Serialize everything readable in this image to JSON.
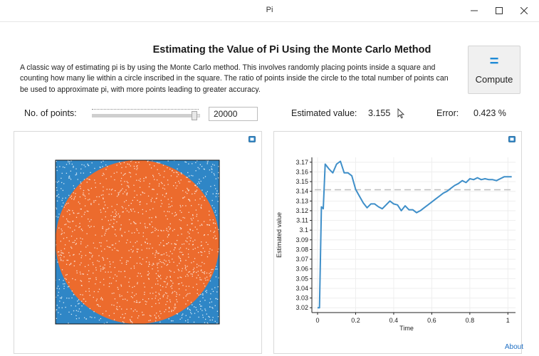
{
  "window": {
    "title": "Pi",
    "controls": [
      "minimize-icon",
      "maximize-icon",
      "close-icon"
    ]
  },
  "heading": "Estimating the Value of Pi Using the Monte Carlo Method",
  "description": "A classic way of estimating pi is by using the Monte Carlo method. This involves randomly placing points inside a square and counting how many lie within a circle inscribed in the square. The ratio of points inside the circle to the total number of points can be used to approximate pi, with more points leading to greater accuracy.",
  "compute_button": {
    "icon": "equals-icon",
    "label": "Compute"
  },
  "controls": {
    "points_label": "No. of points:",
    "points_slider_level": 0.96,
    "points_value": "20000",
    "estimated_label": "Estimated value:",
    "estimated_value": "3.155",
    "error_label": "Error:",
    "error_value": "0.423 %"
  },
  "colors": {
    "inside_points": "#ec6b2d",
    "outside_points": "#2f86c6",
    "line": "#3f8fc9",
    "reference_line": "#bdbdbd",
    "accent": "#1e8ad6"
  },
  "scatter_panel": {
    "icon": "plot-export-icon"
  },
  "chart_data": {
    "type": "line",
    "title": "",
    "xlabel": "Time",
    "ylabel": "Estimated value",
    "xlim": [
      -0.03,
      1.04
    ],
    "ylim": [
      3.015,
      3.175
    ],
    "xticks": [
      "0",
      "0.2",
      "0.4",
      "0.6",
      "0.8",
      "1"
    ],
    "xtick_values": [
      0,
      0.2,
      0.4,
      0.6,
      0.8,
      1
    ],
    "yticks": [
      "3.02",
      "3.03",
      "3.04",
      "3.05",
      "3.06",
      "3.07",
      "3.08",
      "3.09",
      "3.1",
      "3.11",
      "3.12",
      "3.13",
      "3.14",
      "3.15",
      "3.16",
      "3.17"
    ],
    "ytick_values": [
      3.02,
      3.03,
      3.04,
      3.05,
      3.06,
      3.07,
      3.08,
      3.09,
      3.1,
      3.11,
      3.12,
      3.13,
      3.14,
      3.15,
      3.16,
      3.17
    ],
    "grid": true,
    "reference_value": 3.1416,
    "series": [
      {
        "x": [
          0,
          0.01,
          0.02,
          0.03,
          0.04,
          0.06,
          0.08,
          0.1,
          0.12,
          0.14,
          0.16,
          0.18,
          0.2,
          0.22,
          0.24,
          0.26,
          0.28,
          0.3,
          0.32,
          0.34,
          0.36,
          0.38,
          0.4,
          0.42,
          0.44,
          0.46,
          0.48,
          0.5,
          0.52,
          0.54,
          0.56,
          0.58,
          0.6,
          0.62,
          0.64,
          0.66,
          0.68,
          0.7,
          0.72,
          0.74,
          0.76,
          0.78,
          0.8,
          0.82,
          0.84,
          0.86,
          0.88,
          0.9,
          0.92,
          0.94,
          0.96,
          0.98,
          1.0,
          1.02
        ],
        "y": [
          3.02,
          3.02,
          3.124,
          3.122,
          3.168,
          3.163,
          3.159,
          3.168,
          3.171,
          3.159,
          3.159,
          3.156,
          3.142,
          3.135,
          3.128,
          3.123,
          3.127,
          3.127,
          3.124,
          3.122,
          3.126,
          3.13,
          3.127,
          3.126,
          3.12,
          3.125,
          3.121,
          3.121,
          3.118,
          3.12,
          3.123,
          3.126,
          3.129,
          3.132,
          3.135,
          3.138,
          3.14,
          3.143,
          3.146,
          3.148,
          3.151,
          3.149,
          3.153,
          3.152,
          3.154,
          3.152,
          3.153,
          3.152,
          3.152,
          3.151,
          3.153,
          3.155,
          3.155,
          3.155
        ]
      }
    ]
  },
  "about_link": "About"
}
